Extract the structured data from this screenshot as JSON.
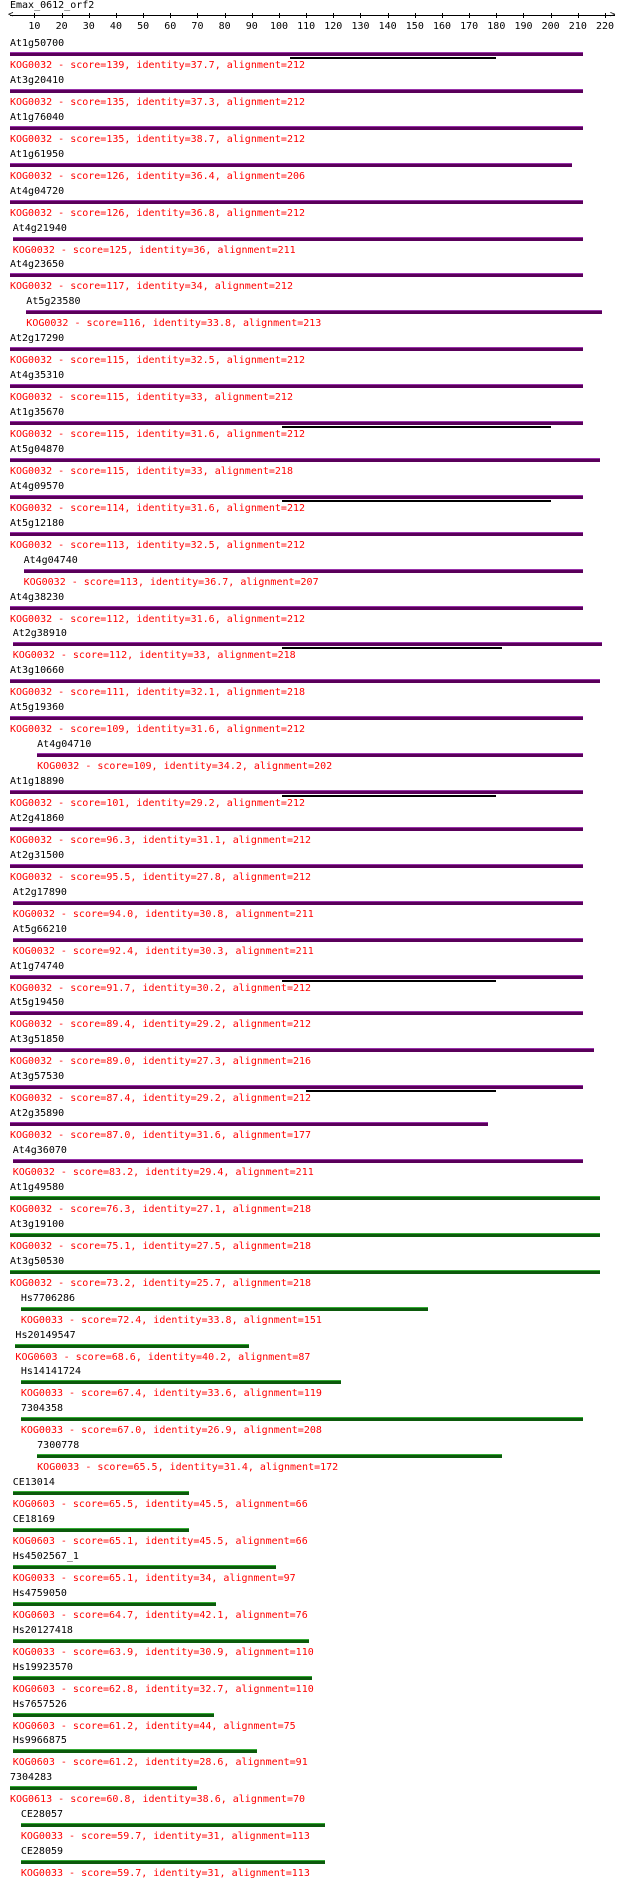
{
  "title": "Emax_0612_orf2",
  "axis": {
    "min": 1,
    "max": 220,
    "ticks": [
      10,
      20,
      30,
      40,
      50,
      60,
      70,
      80,
      90,
      100,
      110,
      120,
      130,
      140,
      150,
      160,
      170,
      180,
      190,
      200,
      210,
      220
    ]
  },
  "colors": {
    "kog_purple": "#5a005a",
    "kog_green": "#0c5a0c",
    "info_text": "#ff0000"
  },
  "hits": [
    {
      "name": "At1g50700",
      "start": 1,
      "end": 212,
      "sub": [
        104,
        180
      ],
      "kog": "KOG0032",
      "score": "139",
      "identity": "37.7",
      "alignment": "212",
      "color": "purple"
    },
    {
      "name": "At3g20410",
      "start": 1,
      "end": 212,
      "kog": "KOG0032",
      "score": "135",
      "identity": "37.3",
      "alignment": "212",
      "color": "purple"
    },
    {
      "name": "At1g76040",
      "start": 1,
      "end": 212,
      "kog": "KOG0032",
      "score": "135",
      "identity": "38.7",
      "alignment": "212",
      "color": "purple"
    },
    {
      "name": "At1g61950",
      "start": 1,
      "end": 208,
      "kog": "KOG0032",
      "score": "126",
      "identity": "36.4",
      "alignment": "206",
      "color": "purple"
    },
    {
      "name": "At4g04720",
      "start": 1,
      "end": 212,
      "kog": "KOG0032",
      "score": "126",
      "identity": "36.8",
      "alignment": "212",
      "color": "purple"
    },
    {
      "name": "At4g21940",
      "start": 2,
      "end": 212,
      "kog": "KOG0032",
      "score": "125",
      "identity": "36",
      "alignment": "211",
      "color": "purple"
    },
    {
      "name": "At4g23650",
      "start": 1,
      "end": 212,
      "kog": "KOG0032",
      "score": "117",
      "identity": "34",
      "alignment": "212",
      "color": "purple"
    },
    {
      "name": "At5g23580",
      "start": 7,
      "end": 219,
      "kog": "KOG0032",
      "score": "116",
      "identity": "33.8",
      "alignment": "213",
      "color": "purple"
    },
    {
      "name": "At2g17290",
      "start": 1,
      "end": 212,
      "kog": "KOG0032",
      "score": "115",
      "identity": "32.5",
      "alignment": "212",
      "color": "purple"
    },
    {
      "name": "At4g35310",
      "start": 1,
      "end": 212,
      "kog": "KOG0032",
      "score": "115",
      "identity": "33",
      "alignment": "212",
      "color": "purple"
    },
    {
      "name": "At1g35670",
      "start": 1,
      "end": 212,
      "sub": [
        101,
        200
      ],
      "kog": "KOG0032",
      "score": "115",
      "identity": "31.6",
      "alignment": "212",
      "color": "purple"
    },
    {
      "name": "At5g04870",
      "start": 1,
      "end": 218,
      "kog": "KOG0032",
      "score": "115",
      "identity": "33",
      "alignment": "218",
      "color": "purple"
    },
    {
      "name": "At4g09570",
      "start": 1,
      "end": 212,
      "sub": [
        101,
        200
      ],
      "kog": "KOG0032",
      "score": "114",
      "identity": "31.6",
      "alignment": "212",
      "color": "purple"
    },
    {
      "name": "At5g12180",
      "start": 1,
      "end": 212,
      "kog": "KOG0032",
      "score": "113",
      "identity": "32.5",
      "alignment": "212",
      "color": "purple"
    },
    {
      "name": "At4g04740",
      "start": 6,
      "end": 212,
      "kog": "KOG0032",
      "score": "113",
      "identity": "36.7",
      "alignment": "207",
      "color": "purple"
    },
    {
      "name": "At4g38230",
      "start": 1,
      "end": 212,
      "kog": "KOG0032",
      "score": "112",
      "identity": "31.6",
      "alignment": "212",
      "color": "purple"
    },
    {
      "name": "At2g38910",
      "start": 2,
      "end": 219,
      "sub": [
        101,
        182
      ],
      "kog": "KOG0032",
      "score": "112",
      "identity": "33",
      "alignment": "218",
      "color": "purple"
    },
    {
      "name": "At3g10660",
      "start": 1,
      "end": 218,
      "kog": "KOG0032",
      "score": "111",
      "identity": "32.1",
      "alignment": "218",
      "color": "purple"
    },
    {
      "name": "At5g19360",
      "start": 1,
      "end": 212,
      "kog": "KOG0032",
      "score": "109",
      "identity": "31.6",
      "alignment": "212",
      "color": "purple"
    },
    {
      "name": "At4g04710",
      "start": 11,
      "end": 212,
      "kog": "KOG0032",
      "score": "109",
      "identity": "34.2",
      "alignment": "202",
      "color": "purple"
    },
    {
      "name": "At1g18890",
      "start": 1,
      "end": 212,
      "sub": [
        101,
        180
      ],
      "kog": "KOG0032",
      "score": "101",
      "identity": "29.2",
      "alignment": "212",
      "color": "purple"
    },
    {
      "name": "At2g41860",
      "start": 1,
      "end": 212,
      "kog": "KOG0032",
      "score": "96.3",
      "identity": "31.1",
      "alignment": "212",
      "color": "purple"
    },
    {
      "name": "At2g31500",
      "start": 1,
      "end": 212,
      "kog": "KOG0032",
      "score": "95.5",
      "identity": "27.8",
      "alignment": "212",
      "color": "purple"
    },
    {
      "name": "At2g17890",
      "start": 2,
      "end": 212,
      "kog": "KOG0032",
      "score": "94.0",
      "identity": "30.8",
      "alignment": "211",
      "color": "purple"
    },
    {
      "name": "At5g66210",
      "start": 2,
      "end": 212,
      "kog": "KOG0032",
      "score": "92.4",
      "identity": "30.3",
      "alignment": "211",
      "color": "purple"
    },
    {
      "name": "At1g74740",
      "start": 1,
      "end": 212,
      "sub": [
        101,
        180
      ],
      "kog": "KOG0032",
      "score": "91.7",
      "identity": "30.2",
      "alignment": "212",
      "color": "purple"
    },
    {
      "name": "At5g19450",
      "start": 1,
      "end": 212,
      "kog": "KOG0032",
      "score": "89.4",
      "identity": "29.2",
      "alignment": "212",
      "color": "purple"
    },
    {
      "name": "At3g51850",
      "start": 1,
      "end": 216,
      "kog": "KOG0032",
      "score": "89.0",
      "identity": "27.3",
      "alignment": "216",
      "color": "purple"
    },
    {
      "name": "At3g57530",
      "start": 1,
      "end": 212,
      "sub": [
        110,
        180
      ],
      "kog": "KOG0032",
      "score": "87.4",
      "identity": "29.2",
      "alignment": "212",
      "color": "purple"
    },
    {
      "name": "At2g35890",
      "start": 1,
      "end": 177,
      "kog": "KOG0032",
      "score": "87.0",
      "identity": "31.6",
      "alignment": "177",
      "color": "purple"
    },
    {
      "name": "At4g36070",
      "start": 2,
      "end": 212,
      "kog": "KOG0032",
      "score": "83.2",
      "identity": "29.4",
      "alignment": "211",
      "color": "purple"
    },
    {
      "name": "At1g49580",
      "start": 1,
      "end": 218,
      "kog": "KOG0032",
      "score": "76.3",
      "identity": "27.1",
      "alignment": "218",
      "color": "green"
    },
    {
      "name": "At3g19100",
      "start": 1,
      "end": 218,
      "kog": "KOG0032",
      "score": "75.1",
      "identity": "27.5",
      "alignment": "218",
      "color": "green"
    },
    {
      "name": "At3g50530",
      "start": 1,
      "end": 218,
      "kog": "KOG0032",
      "score": "73.2",
      "identity": "25.7",
      "alignment": "218",
      "color": "green"
    },
    {
      "name": "Hs7706286",
      "start": 5,
      "end": 155,
      "kog": "KOG0033",
      "score": "72.4",
      "identity": "33.8",
      "alignment": "151",
      "color": "green"
    },
    {
      "name": "Hs20149547",
      "start": 3,
      "end": 89,
      "kog": "KOG0603",
      "score": "68.6",
      "identity": "40.2",
      "alignment": "87",
      "color": "green"
    },
    {
      "name": "Hs14141724",
      "start": 5,
      "end": 123,
      "kog": "KOG0033",
      "score": "67.4",
      "identity": "33.6",
      "alignment": "119",
      "color": "green"
    },
    {
      "name": "7304358",
      "start": 5,
      "end": 212,
      "kog": "KOG0033",
      "score": "67.0",
      "identity": "26.9",
      "alignment": "208",
      "color": "green"
    },
    {
      "name": "7300778",
      "start": 11,
      "end": 182,
      "kog": "KOG0033",
      "score": "65.5",
      "identity": "31.4",
      "alignment": "172",
      "color": "green"
    },
    {
      "name": "CE13014",
      "start": 2,
      "end": 67,
      "kog": "KOG0603",
      "score": "65.5",
      "identity": "45.5",
      "alignment": "66",
      "color": "green"
    },
    {
      "name": "CE18169",
      "start": 2,
      "end": 67,
      "kog": "KOG0603",
      "score": "65.1",
      "identity": "45.5",
      "alignment": "66",
      "color": "green"
    },
    {
      "name": "Hs4502567_1",
      "start": 2,
      "end": 99,
      "kog": "KOG0033",
      "score": "65.1",
      "identity": "34",
      "alignment": "97",
      "color": "green"
    },
    {
      "name": "Hs4759050",
      "start": 2,
      "end": 77,
      "kog": "KOG0603",
      "score": "64.7",
      "identity": "42.1",
      "alignment": "76",
      "color": "green"
    },
    {
      "name": "Hs20127418",
      "start": 2,
      "end": 111,
      "kog": "KOG0033",
      "score": "63.9",
      "identity": "30.9",
      "alignment": "110",
      "color": "green"
    },
    {
      "name": "Hs19923570",
      "start": 2,
      "end": 112,
      "kog": "KOG0603",
      "score": "62.8",
      "identity": "32.7",
      "alignment": "110",
      "color": "green"
    },
    {
      "name": "Hs7657526",
      "start": 2,
      "end": 76,
      "kog": "KOG0603",
      "score": "61.2",
      "identity": "44",
      "alignment": "75",
      "color": "green"
    },
    {
      "name": "Hs9966875",
      "start": 2,
      "end": 92,
      "kog": "KOG0603",
      "score": "61.2",
      "identity": "28.6",
      "alignment": "91",
      "color": "green"
    },
    {
      "name": "7304283",
      "start": 1,
      "end": 70,
      "kog": "KOG0613",
      "score": "60.8",
      "identity": "38.6",
      "alignment": "70",
      "color": "green"
    },
    {
      "name": "CE28057",
      "start": 5,
      "end": 117,
      "kog": "KOG0033",
      "score": "59.7",
      "identity": "31",
      "alignment": "113",
      "color": "green"
    },
    {
      "name": "CE28059",
      "start": 5,
      "end": 117,
      "kog": "KOG0033",
      "score": "59.7",
      "identity": "31",
      "alignment": "113",
      "color": "green"
    }
  ]
}
